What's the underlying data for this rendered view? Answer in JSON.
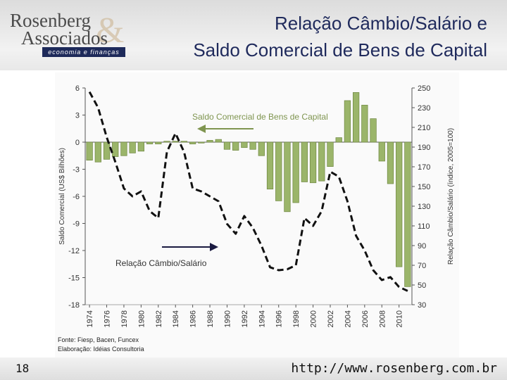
{
  "header": {
    "logo_line1": "Rosenberg",
    "logo_line2": "Associados",
    "logo_amp": "&",
    "logo_tagline": "economia e finanças",
    "title_line1": "Relação Câmbio/Salário e",
    "title_line2": "Saldo Comercial de Bens de Capital"
  },
  "footer": {
    "page_number": "18",
    "url": "http://www.rosenberg.com.br"
  },
  "chart_data": {
    "type": "bar",
    "title": "",
    "ylabel": "Saldo Comercial (US$ Bilhões)",
    "y2label": "Relação Câmbio/Salário (índice, 2005=100)",
    "ylim": [
      -18,
      6
    ],
    "y2lim": [
      30,
      250
    ],
    "yticks": [
      6,
      3,
      0,
      -3,
      -6,
      -9,
      -12,
      -15,
      -18
    ],
    "y2ticks": [
      250,
      230,
      210,
      190,
      170,
      150,
      130,
      110,
      90,
      70,
      50,
      30
    ],
    "x_tick_labels": [
      "1974",
      "1976",
      "1978",
      "1980",
      "1982",
      "1984",
      "1986",
      "1988",
      "1990",
      "1992",
      "1994",
      "1996",
      "1998",
      "2000",
      "2002",
      "2004",
      "2006",
      "2008",
      "2010"
    ],
    "grid": false,
    "series": [
      {
        "name": "Saldo Comercial de Bens de Capital",
        "kind": "bar",
        "axis": "left",
        "color": "#9bb56a",
        "x": [
          1974,
          1975,
          1976,
          1977,
          1978,
          1979,
          1980,
          1981,
          1982,
          1983,
          1984,
          1985,
          1986,
          1987,
          1988,
          1989,
          1990,
          1991,
          1992,
          1993,
          1994,
          1995,
          1996,
          1997,
          1998,
          1999,
          2000,
          2001,
          2002,
          2003,
          2004,
          2005,
          2006,
          2007,
          2008,
          2009,
          2010,
          2011
        ],
        "values": [
          -2.0,
          -2.2,
          -1.9,
          -1.6,
          -1.5,
          -1.2,
          -1.0,
          -0.2,
          -0.2,
          0.1,
          0.1,
          0.1,
          -0.2,
          -0.1,
          0.2,
          0.3,
          -0.8,
          -0.9,
          -0.6,
          -0.8,
          -1.5,
          -5.2,
          -6.5,
          -7.7,
          -6.7,
          -4.4,
          -4.5,
          -4.3,
          -2.7,
          0.5,
          4.6,
          5.5,
          4.1,
          2.6,
          -2.1,
          -4.6,
          -13.8,
          -16.0
        ]
      },
      {
        "name": "Relação Câmbio/Salário",
        "kind": "line",
        "axis": "right",
        "color": "#111111",
        "x": [
          1974,
          1975,
          1976,
          1977,
          1978,
          1979,
          1980,
          1981,
          1982,
          1983,
          1984,
          1985,
          1986,
          1987,
          1988,
          1989,
          1990,
          1991,
          1992,
          1993,
          1994,
          1995,
          1996,
          1997,
          1998,
          1999,
          2000,
          2001,
          2002,
          2003,
          2004,
          2005,
          2006,
          2007,
          2008,
          2009,
          2010,
          2011
        ],
        "values": [
          246,
          230,
          200,
          175,
          148,
          140,
          145,
          125,
          118,
          185,
          204,
          185,
          148,
          145,
          140,
          135,
          112,
          102,
          120,
          108,
          90,
          68,
          65,
          66,
          70,
          118,
          110,
          125,
          165,
          160,
          135,
          100,
          85,
          65,
          55,
          58,
          48,
          44
        ]
      }
    ],
    "annotations": [
      {
        "text": "Saldo Comercial de Bens de Capital",
        "arrow": "left"
      },
      {
        "text": "Relação Câmbio/Salário",
        "arrow": "right"
      }
    ],
    "source_line1": "Fonte: Fiesp, Bacen, Funcex",
    "source_line2": "Elaboração: Idéias Consultoria"
  }
}
